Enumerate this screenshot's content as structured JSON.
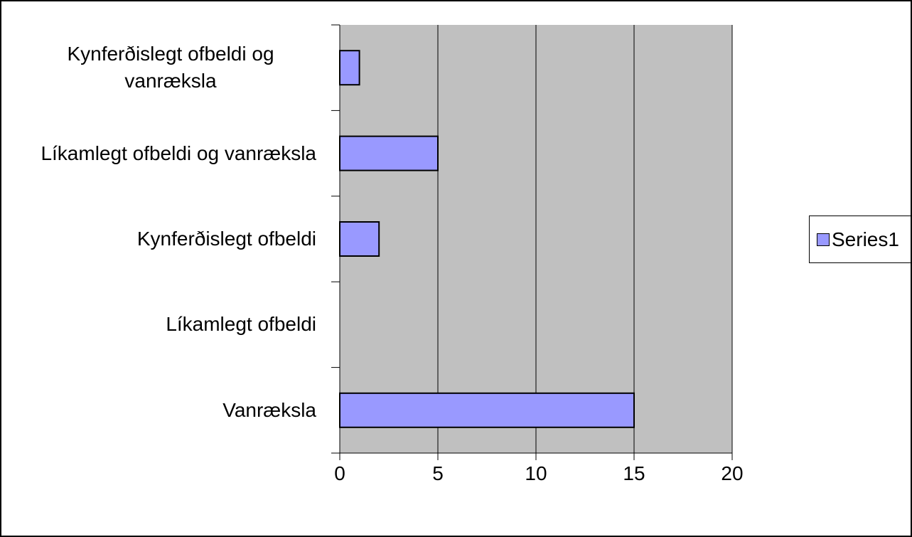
{
  "chart_data": {
    "type": "barh",
    "categories": [
      "Vanræksla",
      "Líkamlegt ofbeldi",
      "Kynferðislegt ofbeldi",
      "Líkamlegt ofbeldi og vanræksla",
      "Kynferðislegt ofbeldi og vanræksla"
    ],
    "series": [
      {
        "name": "Series1",
        "color": "#9999ff",
        "values": [
          15,
          0,
          2,
          5,
          1
        ]
      }
    ],
    "xlim": [
      0,
      20
    ],
    "xticks": [
      0,
      5,
      10,
      15,
      20
    ],
    "grid": true,
    "legend": "right",
    "plot_background": "#c0c0c0"
  }
}
